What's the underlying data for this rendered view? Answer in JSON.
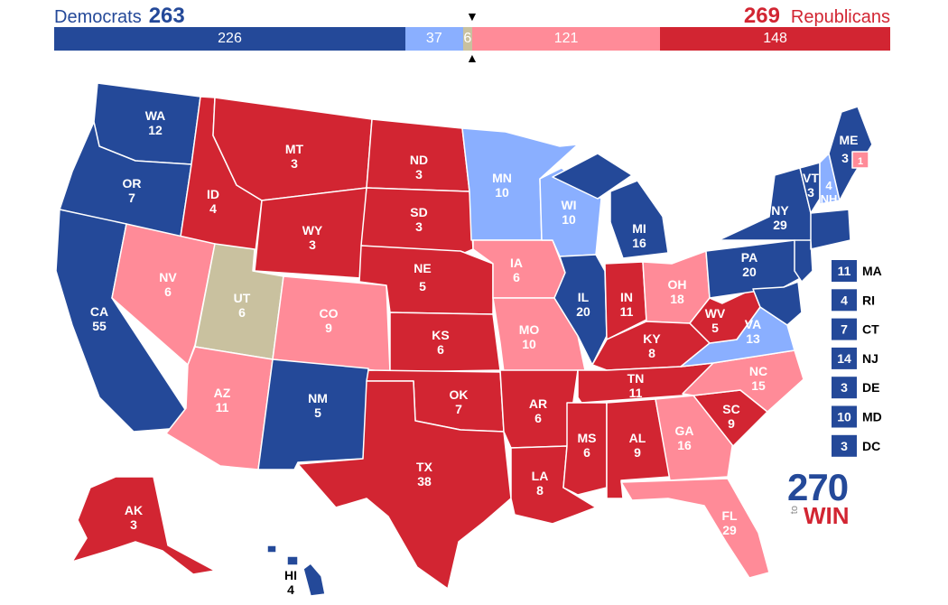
{
  "header": {
    "dem_label": "Democrats",
    "dem_total": "263",
    "rep_label": "Republicans",
    "rep_total": "269"
  },
  "tally": [
    {
      "key": "safe_d",
      "label": "226",
      "value": 226,
      "color": "#244999"
    },
    {
      "key": "lean_d",
      "label": "37",
      "value": 37,
      "color": "#8aafff"
    },
    {
      "key": "tossup",
      "label": "6",
      "value": 6,
      "color": "#c9c19f"
    },
    {
      "key": "lean_r",
      "label": "121",
      "value": 121,
      "color": "#ff8b98"
    },
    {
      "key": "safe_r",
      "label": "148",
      "value": 148,
      "color": "#d22532"
    }
  ],
  "colors": {
    "safe_d": "#244999",
    "lean_d": "#8aafff",
    "tossup": "#c9c19f",
    "lean_r": "#ff8b98",
    "safe_r": "#d22532"
  },
  "states": {
    "WA": {
      "abbr": "WA",
      "ev": "12",
      "cat": "safe_d"
    },
    "OR": {
      "abbr": "OR",
      "ev": "7",
      "cat": "safe_d"
    },
    "CA": {
      "abbr": "CA",
      "ev": "55",
      "cat": "safe_d"
    },
    "ID": {
      "abbr": "ID",
      "ev": "4",
      "cat": "safe_r"
    },
    "NV": {
      "abbr": "NV",
      "ev": "6",
      "cat": "lean_r"
    },
    "UT": {
      "abbr": "UT",
      "ev": "6",
      "cat": "tossup"
    },
    "AZ": {
      "abbr": "AZ",
      "ev": "11",
      "cat": "lean_r"
    },
    "MT": {
      "abbr": "MT",
      "ev": "3",
      "cat": "safe_r"
    },
    "WY": {
      "abbr": "WY",
      "ev": "3",
      "cat": "safe_r"
    },
    "CO": {
      "abbr": "CO",
      "ev": "9",
      "cat": "lean_r"
    },
    "NM": {
      "abbr": "NM",
      "ev": "5",
      "cat": "safe_d"
    },
    "ND": {
      "abbr": "ND",
      "ev": "3",
      "cat": "safe_r"
    },
    "SD": {
      "abbr": "SD",
      "ev": "3",
      "cat": "safe_r"
    },
    "NE": {
      "abbr": "NE",
      "ev": "5",
      "cat": "safe_r"
    },
    "KS": {
      "abbr": "KS",
      "ev": "6",
      "cat": "safe_r"
    },
    "OK": {
      "abbr": "OK",
      "ev": "7",
      "cat": "safe_r"
    },
    "TX": {
      "abbr": "TX",
      "ev": "38",
      "cat": "safe_r"
    },
    "MN": {
      "abbr": "MN",
      "ev": "10",
      "cat": "lean_d"
    },
    "IA": {
      "abbr": "IA",
      "ev": "6",
      "cat": "lean_r"
    },
    "MO": {
      "abbr": "MO",
      "ev": "10",
      "cat": "lean_r"
    },
    "AR": {
      "abbr": "AR",
      "ev": "6",
      "cat": "safe_r"
    },
    "LA": {
      "abbr": "LA",
      "ev": "8",
      "cat": "safe_r"
    },
    "WI": {
      "abbr": "WI",
      "ev": "10",
      "cat": "lean_d"
    },
    "IL": {
      "abbr": "IL",
      "ev": "20",
      "cat": "safe_d"
    },
    "MI": {
      "abbr": "MI",
      "ev": "16",
      "cat": "safe_d"
    },
    "IN": {
      "abbr": "IN",
      "ev": "11",
      "cat": "safe_r"
    },
    "OH": {
      "abbr": "OH",
      "ev": "18",
      "cat": "lean_r"
    },
    "KY": {
      "abbr": "KY",
      "ev": "8",
      "cat": "safe_r"
    },
    "TN": {
      "abbr": "TN",
      "ev": "11",
      "cat": "safe_r"
    },
    "MS": {
      "abbr": "MS",
      "ev": "6",
      "cat": "safe_r"
    },
    "AL": {
      "abbr": "AL",
      "ev": "9",
      "cat": "safe_r"
    },
    "GA": {
      "abbr": "GA",
      "ev": "16",
      "cat": "lean_r"
    },
    "FL": {
      "abbr": "FL",
      "ev": "29",
      "cat": "lean_r"
    },
    "SC": {
      "abbr": "SC",
      "ev": "9",
      "cat": "safe_r"
    },
    "NC": {
      "abbr": "NC",
      "ev": "15",
      "cat": "lean_r"
    },
    "VA": {
      "abbr": "VA",
      "ev": "13",
      "cat": "lean_d"
    },
    "WV": {
      "abbr": "WV",
      "ev": "5",
      "cat": "safe_r"
    },
    "PA": {
      "abbr": "PA",
      "ev": "20",
      "cat": "safe_d"
    },
    "NY": {
      "abbr": "NY",
      "ev": "29",
      "cat": "safe_d"
    },
    "VT": {
      "abbr": "VT",
      "ev": "3",
      "cat": "safe_d"
    },
    "NH": {
      "abbr": "NH",
      "ev": "4",
      "cat": "lean_d"
    },
    "ME": {
      "abbr": "ME",
      "ev": "3",
      "cat": "safe_d"
    },
    "ME2": {
      "abbr": "",
      "ev": "1",
      "cat": "lean_r"
    },
    "AK": {
      "abbr": "AK",
      "ev": "3",
      "cat": "safe_r"
    },
    "HI": {
      "abbr": "HI",
      "ev": "4",
      "cat": "safe_d"
    }
  },
  "small_states": [
    {
      "abbr": "MA",
      "ev": "11",
      "cat": "safe_d"
    },
    {
      "abbr": "RI",
      "ev": "4",
      "cat": "safe_d"
    },
    {
      "abbr": "CT",
      "ev": "7",
      "cat": "safe_d"
    },
    {
      "abbr": "NJ",
      "ev": "14",
      "cat": "safe_d"
    },
    {
      "abbr": "DE",
      "ev": "3",
      "cat": "safe_d"
    },
    {
      "abbr": "MD",
      "ev": "10",
      "cat": "safe_d"
    },
    {
      "abbr": "DC",
      "ev": "3",
      "cat": "safe_d"
    }
  ],
  "logo": {
    "big": "270",
    "to": "to",
    "win": "WIN"
  }
}
